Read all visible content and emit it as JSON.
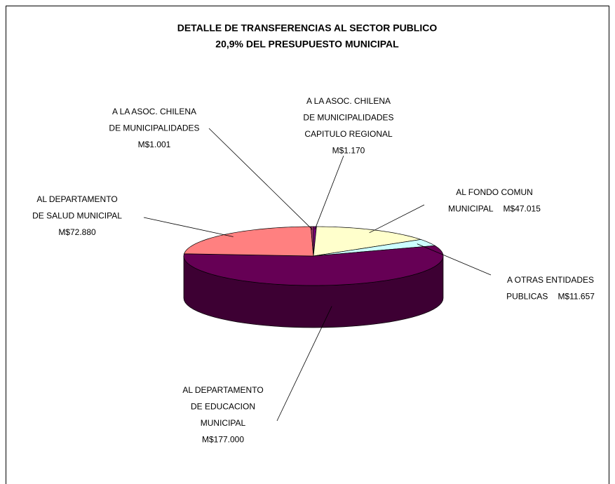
{
  "chart_data": {
    "type": "pie3d",
    "title": [
      "DETALLE DE TRANSFERENCIAS AL SECTOR PUBLICO",
      "20,9% DEL PRESUPUESTO MUNICIPAL"
    ],
    "categories": [
      [
        "A LA ASOC. CHILENA",
        "DE MUNICIPALIDADES",
        "CAPITULO REGIONAL"
      ],
      [
        "AL FONDO COMUN",
        "MUNICIPAL"
      ],
      [
        "A OTRAS ENTIDADES",
        "PUBLICAS"
      ],
      [
        "AL DEPARTAMENTO",
        "DE EDUCACION",
        "MUNICIPAL"
      ],
      [
        "AL DEPARTAMENTO",
        "DE SALUD MUNICIPAL"
      ],
      [
        "A LA ASOC. CHILENA",
        "DE MUNICIPALIDADES"
      ]
    ],
    "values": [
      1170,
      47015,
      11657,
      177000,
      72880,
      1001
    ],
    "value_labels": [
      "M$1.170",
      "M$47.015",
      "M$11.657",
      "M$177.000",
      "M$72.880",
      "M$1.001"
    ],
    "colors": [
      "#800080",
      "#ffffcc",
      "#ccffff",
      "#660055",
      "#ff8080",
      "#993366"
    ]
  }
}
